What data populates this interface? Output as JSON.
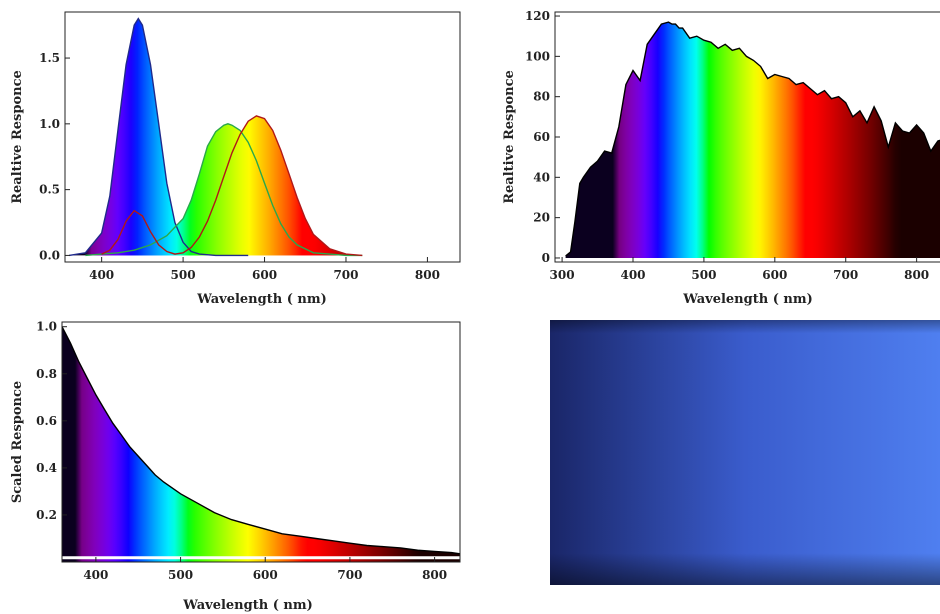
{
  "chart_data": [
    {
      "type": "line",
      "title": "",
      "xlabel": "Wavelength ( nm)",
      "ylabel": "Realtive Responce",
      "xlim": [
        355,
        840
      ],
      "ylim": [
        -0.05,
        1.85
      ],
      "xticks": [
        400,
        500,
        600,
        700,
        800
      ],
      "yticks": [
        0.0,
        0.5,
        1.0,
        1.5
      ],
      "ytick_labels": [
        "0.0",
        "0.5",
        "1.0",
        "1.5"
      ],
      "series": [
        {
          "color": "#1f2a8c",
          "fill": "spectrum",
          "x": [
            360,
            380,
            400,
            410,
            420,
            430,
            440,
            445,
            450,
            460,
            470,
            480,
            490,
            500,
            510,
            520,
            540,
            560,
            580
          ],
          "y": [
            0.0,
            0.02,
            0.17,
            0.45,
            0.95,
            1.45,
            1.75,
            1.8,
            1.75,
            1.45,
            1.0,
            0.55,
            0.25,
            0.1,
            0.03,
            0.01,
            0.0,
            0.0,
            0.0
          ]
        },
        {
          "color": "#2aa84a",
          "fill": "spectrum",
          "x": [
            380,
            400,
            420,
            440,
            460,
            480,
            500,
            510,
            520,
            530,
            540,
            550,
            555,
            560,
            570,
            580,
            590,
            600,
            610,
            620,
            630,
            640,
            660,
            680,
            700,
            720
          ],
          "y": [
            0.0,
            0.01,
            0.02,
            0.04,
            0.08,
            0.15,
            0.28,
            0.42,
            0.62,
            0.83,
            0.94,
            0.99,
            1.0,
            0.99,
            0.95,
            0.86,
            0.72,
            0.55,
            0.38,
            0.24,
            0.14,
            0.08,
            0.02,
            0.01,
            0.0,
            0.0
          ]
        },
        {
          "color": "#b01818",
          "fill": "spectrum",
          "x": [
            400,
            410,
            420,
            430,
            440,
            450,
            460,
            470,
            480,
            490,
            500,
            510,
            520,
            530,
            540,
            550,
            560,
            570,
            580,
            590,
            600,
            610,
            620,
            630,
            640,
            650,
            660,
            680,
            700,
            720
          ],
          "y": [
            0.01,
            0.04,
            0.12,
            0.26,
            0.34,
            0.3,
            0.18,
            0.08,
            0.03,
            0.01,
            0.02,
            0.06,
            0.14,
            0.26,
            0.42,
            0.6,
            0.78,
            0.92,
            1.02,
            1.06,
            1.04,
            0.95,
            0.8,
            0.62,
            0.44,
            0.28,
            0.16,
            0.05,
            0.01,
            0.0
          ]
        }
      ]
    },
    {
      "type": "area",
      "title": "",
      "xlabel": "Wavelength ( nm)",
      "ylabel": "Realtive Responce",
      "xlim": [
        290,
        840
      ],
      "ylim": [
        -2,
        122
      ],
      "xticks": [
        300,
        400,
        500,
        600,
        700,
        800
      ],
      "yticks": [
        0,
        20,
        40,
        60,
        80,
        100,
        120
      ],
      "ytick_labels": [
        "0",
        "20",
        "40",
        "60",
        "80",
        "100",
        "120"
      ],
      "series": [
        {
          "color": "#000000",
          "fill": "spectrum",
          "x": [
            305,
            312,
            318,
            325,
            330,
            340,
            350,
            360,
            370,
            380,
            390,
            400,
            410,
            420,
            430,
            440,
            450,
            455,
            460,
            465,
            470,
            480,
            490,
            500,
            510,
            520,
            530,
            540,
            550,
            560,
            570,
            580,
            590,
            600,
            610,
            620,
            630,
            640,
            650,
            660,
            670,
            680,
            690,
            700,
            710,
            720,
            730,
            740,
            750,
            760,
            770,
            780,
            790,
            800,
            810,
            820,
            830,
            840
          ],
          "y": [
            1,
            3,
            18,
            37,
            40,
            45,
            48,
            53,
            52,
            65,
            86,
            93,
            88,
            106,
            111,
            116,
            117,
            116,
            116,
            114,
            114,
            109,
            110,
            108,
            107,
            104,
            106,
            103,
            104,
            100,
            98,
            95,
            89,
            91,
            90,
            89,
            86,
            87,
            84,
            81,
            83,
            79,
            80,
            77,
            70,
            73,
            67,
            75,
            68,
            55,
            67,
            63,
            62,
            66,
            62,
            53,
            58,
            59
          ]
        }
      ]
    },
    {
      "type": "area",
      "title": "",
      "xlabel": "Wavelength ( nm)",
      "ylabel": "Scaled Responce",
      "xlim": [
        360,
        830
      ],
      "ylim": [
        0.0,
        1.02
      ],
      "xticks": [
        400,
        500,
        600,
        700,
        800
      ],
      "yticks": [
        0.2,
        0.4,
        0.6,
        0.8,
        1.0
      ],
      "ytick_labels": [
        "0.2",
        "0.4",
        "0.6",
        "0.8",
        "1.0"
      ],
      "series": [
        {
          "color": "#000000",
          "fill": "spectrum",
          "x": [
            360,
            370,
            380,
            390,
            400,
            410,
            420,
            430,
            440,
            450,
            460,
            470,
            480,
            500,
            520,
            540,
            560,
            580,
            600,
            620,
            640,
            660,
            680,
            700,
            720,
            740,
            760,
            780,
            800,
            820,
            830
          ],
          "y": [
            1.0,
            0.93,
            0.85,
            0.78,
            0.71,
            0.65,
            0.59,
            0.54,
            0.49,
            0.45,
            0.41,
            0.37,
            0.34,
            0.29,
            0.25,
            0.21,
            0.18,
            0.16,
            0.14,
            0.12,
            0.11,
            0.1,
            0.09,
            0.08,
            0.07,
            0.065,
            0.06,
            0.05,
            0.045,
            0.04,
            0.035
          ]
        }
      ]
    },
    {
      "type": "table",
      "title": "",
      "gradient_colors": [
        "#1a2668",
        "#3a5ccc",
        "#4f7ff0"
      ]
    }
  ]
}
